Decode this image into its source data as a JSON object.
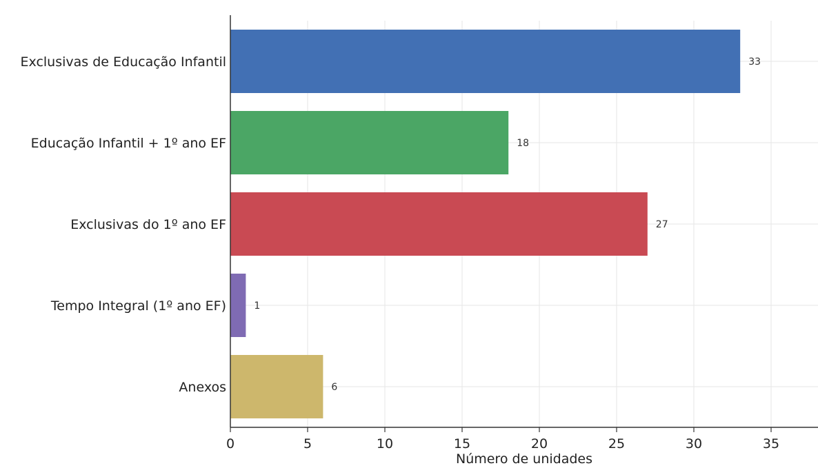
{
  "chart_data": {
    "type": "bar",
    "orientation": "horizontal",
    "title": "",
    "xlabel": "Número de unidades",
    "ylabel": "",
    "categories": [
      "Exclusivas de Educação Infantil",
      "Educação Infantil + 1º ano EF",
      "Exclusivas do 1º ano EF",
      "Tempo Integral (1º ano EF)",
      "Anexos"
    ],
    "values": [
      33,
      18,
      27,
      1,
      6
    ],
    "colors": [
      "#4270b4",
      "#4ba665",
      "#c94a53",
      "#7f6bb3",
      "#cdb76c"
    ],
    "xlim": [
      0,
      38
    ],
    "xticks": [
      0,
      5,
      10,
      15,
      20,
      25,
      30,
      35
    ],
    "grid": true
  }
}
